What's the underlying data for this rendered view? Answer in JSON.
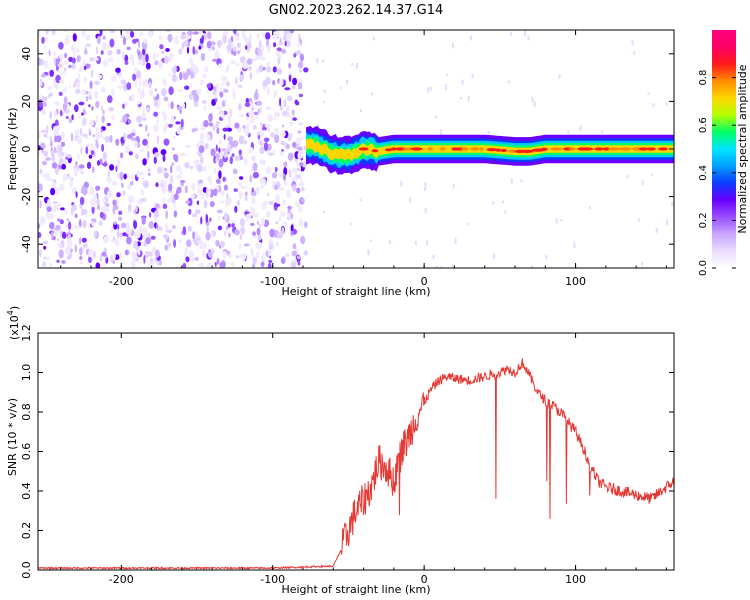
{
  "title": "GN02.2023.262.14.37.G14",
  "colors": {
    "snr_line": "#e53935",
    "axis": "#000000",
    "spectro_colormap": [
      "#ffffff",
      "#e8dcff",
      "#c9a6ff",
      "#9b4dff",
      "#6a00ff",
      "#0b3bff",
      "#00a0ff",
      "#00e5ff",
      "#00ff66",
      "#b5ff00",
      "#ffd600",
      "#ff8c00",
      "#ff1a1a",
      "#ff0066",
      "#ff007f"
    ]
  },
  "chart_data": [
    {
      "type": "heatmap",
      "name": "spectrogram",
      "title": "GN02.2023.262.14.37.G14",
      "xlabel": "Height of straight line (km)",
      "ylabel": "Frequency (Hz)",
      "xlim": [
        -255,
        165
      ],
      "ylim": [
        -50,
        50
      ],
      "xticks": [
        -200,
        -100,
        0,
        100
      ],
      "xtick_labels": [
        "-200",
        "-100",
        "0",
        "100"
      ],
      "yticks": [
        -40,
        -20,
        0,
        20,
        40
      ],
      "ytick_labels": [
        "-40",
        "-20",
        "0",
        "20",
        "40"
      ],
      "colorbar": {
        "label": "Normalized spectral amplitude",
        "range": [
          0,
          1
        ],
        "ticks": [
          0.0,
          0.2,
          0.4,
          0.6,
          0.8
        ],
        "tick_labels": [
          "0.0",
          "0.2",
          "0.4",
          "0.6",
          "0.8"
        ]
      },
      "noise_region_x": [
        -255,
        -78
      ],
      "signal_track": {
        "x": [
          -78,
          -70,
          -60,
          -50,
          -40,
          -30,
          -20,
          -10,
          0,
          20,
          40,
          60,
          70,
          80,
          100,
          120,
          140,
          165
        ],
        "frequency": [
          2,
          1,
          -2,
          -3,
          0,
          -1,
          0,
          0,
          0,
          0,
          0,
          -1,
          -1,
          0,
          0,
          0,
          0,
          0
        ]
      }
    },
    {
      "type": "line",
      "name": "snr",
      "xlabel": "Height of straight line (km)",
      "ylabel": "SNR (10 * v/v)",
      "y_scale_label": "(x10",
      "y_scale_exponent": "4",
      "y_scale_suffix": ")",
      "xlim": [
        -255,
        165
      ],
      "ylim": [
        0.0,
        1.2
      ],
      "xticks": [
        -200,
        -100,
        0,
        100
      ],
      "xtick_labels": [
        "-200",
        "-100",
        "0",
        "100"
      ],
      "yticks": [
        0.0,
        0.2,
        0.4,
        0.6,
        0.8,
        1.0,
        1.2
      ],
      "ytick_labels": [
        "0.0",
        "0.2",
        "0.4",
        "0.6",
        "0.8",
        "1.0",
        "1.2"
      ],
      "series": [
        {
          "x": [
            -255,
            -200,
            -100,
            -60,
            -55,
            -50,
            -45,
            -40,
            -35,
            -30,
            -25,
            -20,
            -15,
            -10,
            -5,
            0,
            5,
            10,
            15,
            20,
            30,
            40,
            50,
            55,
            60,
            65,
            70,
            75,
            80,
            90,
            100,
            105,
            110,
            115,
            120,
            130,
            140,
            150,
            160,
            165
          ],
          "values": [
            0.01,
            0.01,
            0.01,
            0.02,
            0.1,
            0.2,
            0.3,
            0.35,
            0.42,
            0.55,
            0.52,
            0.45,
            0.6,
            0.68,
            0.78,
            0.85,
            0.92,
            0.96,
            0.98,
            0.97,
            0.96,
            0.98,
            1.0,
            1.02,
            1.0,
            1.05,
            0.98,
            0.9,
            0.86,
            0.8,
            0.7,
            0.62,
            0.52,
            0.45,
            0.42,
            0.4,
            0.38,
            0.36,
            0.42,
            0.45
          ]
        }
      ]
    }
  ]
}
